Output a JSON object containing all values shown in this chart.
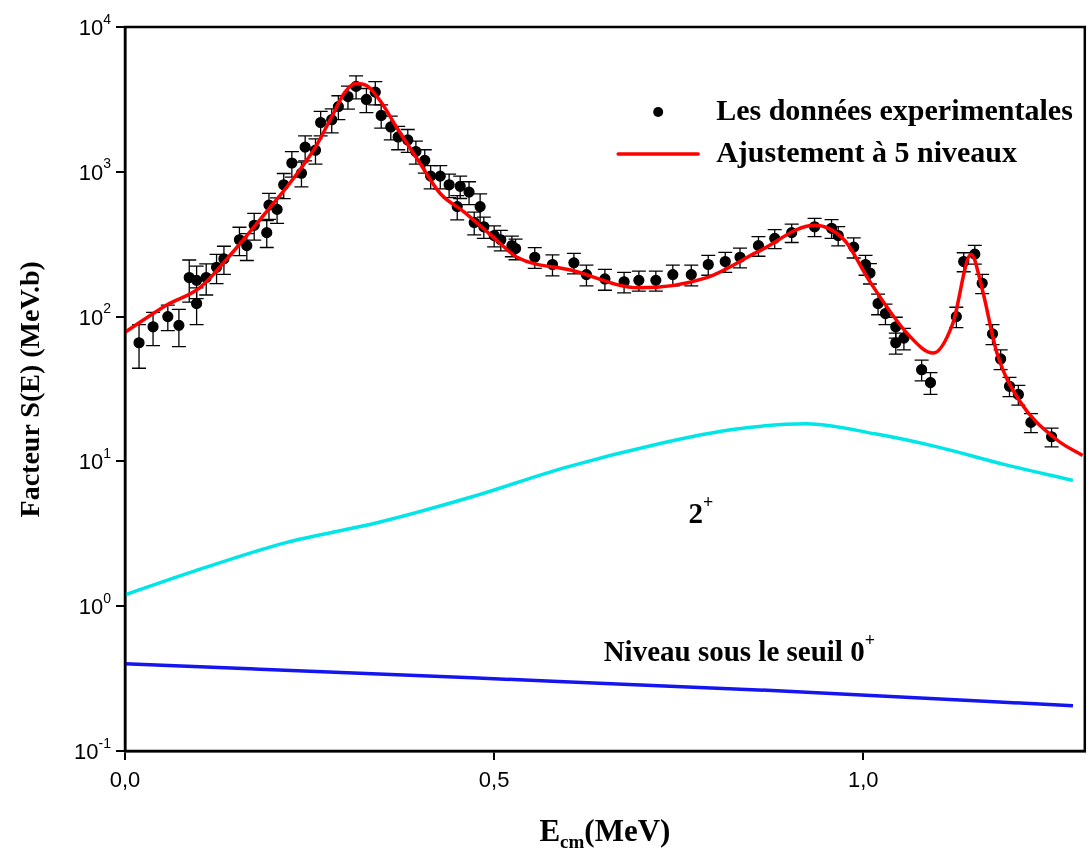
{
  "chart_data": {
    "type": "line",
    "xlabel": "E$_{cm}$(MeV)",
    "ylabel": "Facteur S(E) (MeV.b)",
    "xlim": [
      0,
      1.3
    ],
    "xticks": [
      {
        "value": 0,
        "label": "0,0"
      },
      {
        "value": 0.5,
        "label": "0,5"
      },
      {
        "value": 1,
        "label": "1,0"
      }
    ],
    "ylim": [
      0.1,
      10000
    ],
    "yticks": [
      {
        "value": 0.1,
        "label": "10$^{-1}$"
      },
      {
        "value": 1,
        "label": "10$^{0}$"
      },
      {
        "value": 10,
        "label": "10$^{1}$"
      },
      {
        "value": 100,
        "label": "10$^{2}$"
      },
      {
        "value": 1000,
        "label": "10$^{3}$"
      },
      {
        "value": 10000,
        "label": "10$^{4}$"
      }
    ],
    "log": "y",
    "legend": "top right",
    "series": [
      {
        "name": "Les données experimentales",
        "type": "scatter",
        "marker": "circle",
        "color": "#000000",
        "x": [
          0.019,
          0.038,
          0.058,
          0.073,
          0.087,
          0.097,
          0.097,
          0.11,
          0.124,
          0.134,
          0.155,
          0.165,
          0.175,
          0.192,
          0.195,
          0.206,
          0.215,
          0.226,
          0.239,
          0.244,
          0.258,
          0.265,
          0.28,
          0.289,
          0.302,
          0.313,
          0.327,
          0.339,
          0.347,
          0.36,
          0.37,
          0.383,
          0.394,
          0.406,
          0.414,
          0.427,
          0.439,
          0.45,
          0.454,
          0.466,
          0.473,
          0.481,
          0.486,
          0.5,
          0.509,
          0.524,
          0.529,
          0.555,
          0.579,
          0.608,
          0.625,
          0.65,
          0.676,
          0.696,
          0.719,
          0.742,
          0.767,
          0.79,
          0.813,
          0.833,
          0.858,
          0.88,
          0.903,
          0.934,
          0.957,
          0.966,
          0.987,
          1.003,
          1.009,
          1.02,
          1.03,
          1.044,
          1.044,
          1.055,
          1.079,
          1.091,
          1.126,
          1.136,
          1.151,
          1.161,
          1.175,
          1.186,
          1.198,
          1.21,
          1.227,
          1.255
        ],
        "values": [
          66,
          85,
          100,
          87,
          186,
          178,
          123,
          186,
          219,
          251,
          339,
          309,
          427,
          380,
          589,
          550,
          813,
          1150,
          977,
          1480,
          1410,
          2190,
          2290,
          2820,
          3310,
          3890,
          3160,
          3550,
          2450,
          2040,
          1740,
          1660,
          1380,
          1200,
          933,
          933,
          813,
          575,
          794,
          724,
          447,
          575,
          417,
          363,
          339,
          309,
          295,
          257,
          229,
          235,
          195,
          182,
          174,
          178,
          178,
          195,
          195,
          229,
          240,
          257,
          309,
          347,
          380,
          417,
          407,
          363,
          302,
          229,
          200,
          123,
          105,
          85,
          66,
          71,
          43,
          35,
          100,
          240,
          270,
          170,
          76,
          51,
          33,
          29,
          18.6,
          14.8
        ],
        "errors": [
          22,
          22,
          20,
          25,
          60,
          45,
          35,
          45,
          50,
          55,
          75,
          65,
          90,
          80,
          120,
          110,
          160,
          230,
          190,
          290,
          280,
          420,
          430,
          530,
          600,
          700,
          600,
          650,
          450,
          380,
          320,
          300,
          250,
          220,
          170,
          170,
          150,
          110,
          140,
          130,
          80,
          130,
          70,
          60,
          55,
          50,
          48,
          42,
          38,
          38,
          32,
          30,
          28,
          28,
          28,
          32,
          32,
          36,
          38,
          40,
          48,
          52,
          55,
          60,
          60,
          55,
          48,
          36,
          32,
          20,
          17,
          14,
          11,
          12,
          7,
          6,
          16,
          36,
          40,
          26,
          12,
          8,
          5,
          4.5,
          2.8,
          2.2
        ]
      },
      {
        "name": "Ajustement à 5 niveaux",
        "color": "#ff0000",
        "x": [
          0,
          0.056,
          0.101,
          0.145,
          0.191,
          0.226,
          0.258,
          0.28,
          0.298,
          0.313,
          0.329,
          0.347,
          0.37,
          0.397,
          0.427,
          0.46,
          0.504,
          0.531,
          0.605,
          0.696,
          0.788,
          0.858,
          0.934,
          0.974,
          1.009,
          1.06,
          1.095,
          1.121,
          1.146,
          1.161,
          1.181,
          1.212,
          1.263,
          1.297
        ],
        "values": [
          78,
          120,
          158,
          275,
          525,
          871,
          1480,
          2400,
          3550,
          4070,
          3890,
          3020,
          1950,
          1200,
          708,
          525,
          335,
          257,
          209,
          158,
          186,
          282,
          427,
          339,
          174,
          76,
          56,
          89,
          270,
          155,
          56,
          26,
          14,
          11
        ]
      },
      {
        "color": "#00e6e6",
        "x": [
          0,
          0.093,
          0.218,
          0.344,
          0.47,
          0.597,
          0.722,
          0.823,
          0.923,
          1.016,
          1.1,
          1.192,
          1.284
        ],
        "values": [
          1.2,
          1.74,
          2.75,
          3.8,
          5.7,
          9.1,
          13.2,
          16.6,
          18.2,
          15.5,
          12.6,
          9.5,
          7.4
        ]
      },
      {
        "color": "#1515f0",
        "x": [
          0,
          0.47,
          0.89,
          1.284
        ],
        "values": [
          0.4,
          0.32,
          0.26,
          0.205
        ]
      }
    ],
    "annotations": [
      "2$^{+}$",
      "Niveau sous le seuil 0$^{+}$"
    ]
  }
}
